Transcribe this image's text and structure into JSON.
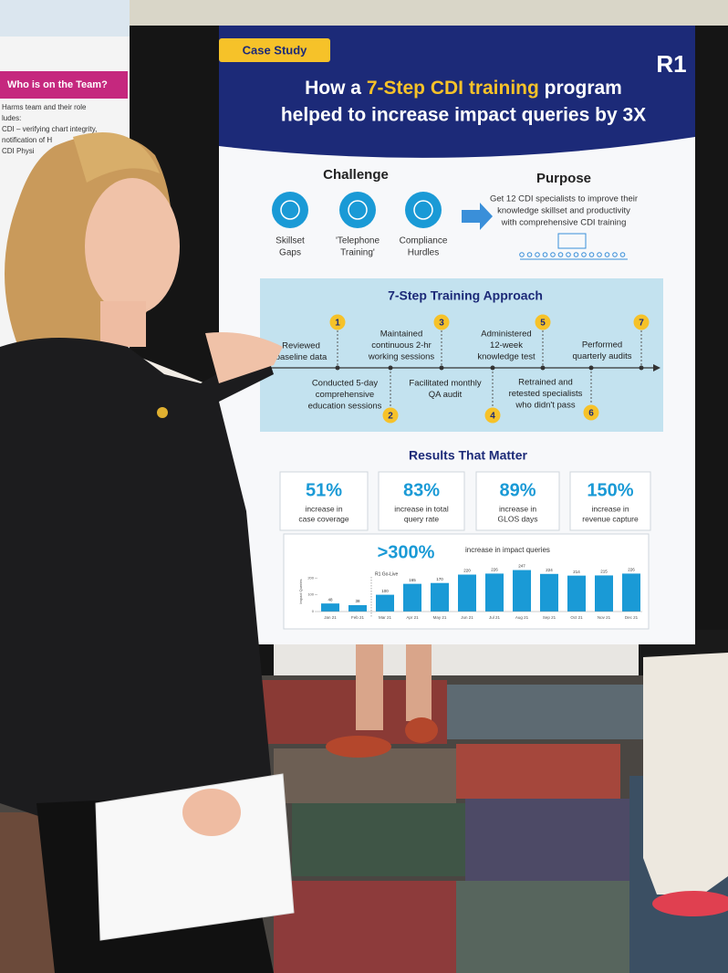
{
  "left_panel": {
    "heading": "Who is on the Team?",
    "lines": [
      "Harms team and their role",
      "ludes:",
      "CDI – verifying chart integrity,",
      "notification of H",
      "CDI Physi"
    ]
  },
  "poster": {
    "badge": "Case Study",
    "logo": "R1",
    "title": {
      "line1_start": "How a",
      "highlight": "7-Step CDI training",
      "line1_end": "program",
      "line2": "helped to increase impact queries by 3X"
    },
    "challenge": {
      "heading": "Challenge",
      "items": [
        [
          "Skillset",
          "Gaps"
        ],
        [
          "'Telephone",
          "Training'"
        ],
        [
          "Compliance",
          "Hurdles"
        ]
      ]
    },
    "purpose": {
      "heading": "Purpose",
      "lines": [
        "Get 12 CDI specialists to improve their",
        "knowledge skillset and productivity",
        "with comprehensive CDI training"
      ]
    },
    "approach": {
      "title": "7-Step Training Approach",
      "steps": [
        {
          "number": "1",
          "lines": [
            "Reviewed",
            "baseline data"
          ]
        },
        {
          "number": "2",
          "lines": [
            "Conducted 5-day",
            "comprehensive",
            "education sessions"
          ]
        },
        {
          "number": "3",
          "lines": [
            "Maintained",
            "continuous 2-hr",
            "working sessions"
          ]
        },
        {
          "number": "4",
          "lines": [
            "Facilitated monthly",
            "QA audit"
          ]
        },
        {
          "number": "5",
          "lines": [
            "Administered",
            "12-week",
            "knowledge test"
          ]
        },
        {
          "number": "6",
          "lines": [
            "Retrained and",
            "retested specialists",
            "who didn't pass"
          ]
        },
        {
          "number": "7",
          "lines": [
            "Performed",
            "quarterly audits"
          ]
        }
      ]
    },
    "results": {
      "title": "Results That Matter",
      "stats": [
        {
          "value": "51%",
          "lines": [
            "increase in",
            "case coverage"
          ]
        },
        {
          "value": "83%",
          "lines": [
            "increase in total",
            "query rate"
          ]
        },
        {
          "value": "89%",
          "lines": [
            "increase in",
            "GLOS days"
          ]
        },
        {
          "value": "150%",
          "lines": [
            "increase in",
            "revenue capture"
          ]
        }
      ],
      "chart": {
        "type": "bar",
        "headline": ">300%",
        "subtitle": "increase in impact queries",
        "y_label": "Impact Queries",
        "annotation": "R1 Go-Live",
        "categories": [
          "Jan 21",
          "Feb 21",
          "Mar 21",
          "Apr 21",
          "May 21",
          "Jun 21",
          "Jul 21",
          "Aug 21",
          "Sep 21",
          "Oct 21",
          "Nov 21",
          "Dec 21"
        ],
        "values": [
          48,
          38,
          100,
          165,
          170,
          220,
          226,
          247,
          224,
          214,
          215,
          226
        ],
        "color": "#1a9ad6",
        "ylim": [
          0,
          250
        ],
        "yticks": [
          0,
          100,
          200
        ]
      }
    }
  }
}
